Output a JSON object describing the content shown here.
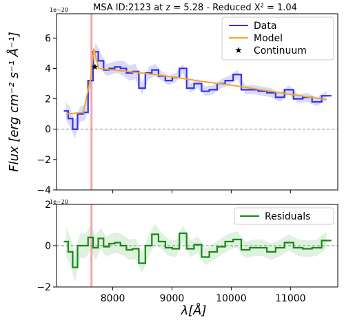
{
  "chart_data": [
    {
      "type": "line",
      "title": "MSA ID:2123 at z = 5.28 - Reduced X² = 1.04",
      "ylabel": "Flux [erg cm⁻² s⁻¹ Å⁻¹]",
      "y_multiplier": "1e−20",
      "xlim": [
        7050,
        11800
      ],
      "ylim": [
        -4,
        7.6
      ],
      "yticks": [
        -4,
        -2,
        0,
        2,
        4,
        6
      ],
      "yticklabels": [
        "−4",
        "−2",
        "0",
        "2",
        "4",
        "6"
      ],
      "legend_position": "top-right",
      "grid": false,
      "vertical_line": {
        "x": 7640,
        "color": "#f4a6ad"
      },
      "zero_line": {
        "y": 0,
        "style": "dashed",
        "color": "#808080"
      },
      "series": [
        {
          "name": "Data",
          "color": "#3333ee",
          "style": "steps",
          "x": [
            7210,
            7285,
            7360,
            7450,
            7540,
            7625,
            7710,
            7800,
            7890,
            7985,
            8080,
            8180,
            8280,
            8385,
            8495,
            8605,
            8715,
            8830,
            8945,
            9065,
            9185,
            9310,
            9435,
            9565,
            9695,
            9830,
            9965,
            10100,
            10240,
            10385,
            10530,
            10675,
            10825,
            10975,
            11130,
            11285,
            11445,
            11610
          ],
          "y": [
            1.2,
            0.7,
            0.0,
            1.0,
            1.1,
            3.2,
            5.1,
            4.5,
            3.9,
            4.0,
            4.1,
            4.0,
            3.7,
            3.8,
            2.7,
            3.7,
            3.9,
            3.5,
            3.2,
            3.4,
            4.0,
            2.7,
            3.0,
            2.5,
            2.6,
            3.0,
            3.2,
            3.6,
            2.6,
            2.6,
            2.5,
            2.4,
            2.1,
            2.6,
            2.0,
            2.1,
            1.8,
            2.2
          ],
          "band_halfwidth": [
            0.6,
            0.6,
            0.6,
            0.5,
            0.5,
            0.5,
            0.6,
            0.5,
            0.4,
            0.4,
            0.4,
            0.5,
            0.5,
            0.5,
            0.4,
            0.4,
            0.4,
            0.3,
            0.3,
            0.3,
            0.3,
            0.3,
            0.3,
            0.3,
            0.3,
            0.3,
            0.3,
            0.3,
            0.3,
            0.3,
            0.3,
            0.3,
            0.3,
            0.3,
            0.3,
            0.3,
            0.3,
            0.3
          ],
          "band_color": "#c5c8f2"
        },
        {
          "name": "Model",
          "color": "#f5a623",
          "style": "line",
          "x": [
            7210,
            7500,
            7625,
            7680,
            7760,
            8000,
            8500,
            9000,
            9500,
            10000,
            10500,
            11000,
            11610
          ],
          "y": [
            1.0,
            1.1,
            3.3,
            5.3,
            4.0,
            3.9,
            3.7,
            3.45,
            3.15,
            2.9,
            2.6,
            2.3,
            1.95
          ]
        },
        {
          "name": "Continuum",
          "color": "#000000",
          "style": "marker",
          "marker": "star",
          "x": [
            7700
          ],
          "y": [
            4.1
          ]
        }
      ]
    },
    {
      "type": "line",
      "xlabel": "λ[Å]",
      "y_multiplier": "1e−20",
      "xlim": [
        7050,
        11800
      ],
      "ylim": [
        -2,
        2
      ],
      "xticks": [
        8000,
        9000,
        10000,
        11000
      ],
      "xticklabels": [
        "8000",
        "9000",
        "10000",
        "11000"
      ],
      "yticks": [
        -2,
        0,
        2
      ],
      "yticklabels": [
        "−2",
        "0",
        "2"
      ],
      "legend_position": "top-right",
      "grid": false,
      "vertical_line": {
        "x": 7640,
        "color": "#f4a6ad"
      },
      "zero_line": {
        "y": 0,
        "style": "dashed",
        "color": "#808080"
      },
      "series": [
        {
          "name": "Residuals",
          "color": "#138a13",
          "style": "steps",
          "x": [
            7210,
            7285,
            7360,
            7450,
            7540,
            7625,
            7710,
            7800,
            7890,
            7985,
            8080,
            8180,
            8280,
            8385,
            8495,
            8605,
            8715,
            8830,
            8945,
            9065,
            9185,
            9310,
            9435,
            9565,
            9695,
            9830,
            9965,
            10100,
            10240,
            10385,
            10530,
            10675,
            10825,
            10975,
            11130,
            11285,
            11445,
            11610
          ],
          "y": [
            0.2,
            -0.3,
            -1.05,
            0.0,
            0.0,
            0.4,
            -0.1,
            0.35,
            -0.05,
            0.1,
            0.15,
            0.0,
            -0.2,
            -0.15,
            -0.85,
            0.0,
            0.55,
            0.2,
            -0.1,
            -0.15,
            0.6,
            -0.15,
            0.05,
            -0.55,
            -0.3,
            -0.05,
            0.2,
            0.3,
            -0.2,
            -0.1,
            -0.1,
            -0.3,
            -0.1,
            0.15,
            -0.1,
            -0.15,
            -0.1,
            0.25
          ],
          "band_halfwidth": [
            0.7,
            0.7,
            0.7,
            0.6,
            0.6,
            0.6,
            0.6,
            0.5,
            0.5,
            0.5,
            0.5,
            0.5,
            0.5,
            0.5,
            0.5,
            0.5,
            0.5,
            0.4,
            0.4,
            0.4,
            0.4,
            0.4,
            0.4,
            0.4,
            0.4,
            0.4,
            0.4,
            0.4,
            0.4,
            0.4,
            0.4,
            0.4,
            0.4,
            0.4,
            0.4,
            0.4,
            0.4,
            0.4
          ],
          "band_color": "#cfe9cf"
        }
      ]
    }
  ]
}
